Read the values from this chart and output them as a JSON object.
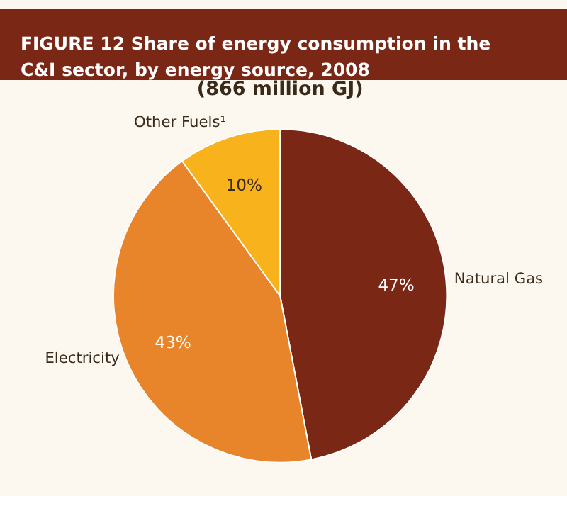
{
  "chart_data": {
    "type": "pie",
    "title": "FIGURE 12  Share of energy consumption in the C&I sector, by energy source, 2008",
    "subtitle": "(866 million GJ)",
    "categories": [
      "Natural Gas",
      "Electricity",
      "Other Fuels¹"
    ],
    "values": [
      47,
      43,
      10
    ],
    "colors": [
      "#7a2716",
      "#e8852b",
      "#f7b21c"
    ],
    "value_labels": [
      "47%",
      "43%",
      "10%"
    ]
  }
}
